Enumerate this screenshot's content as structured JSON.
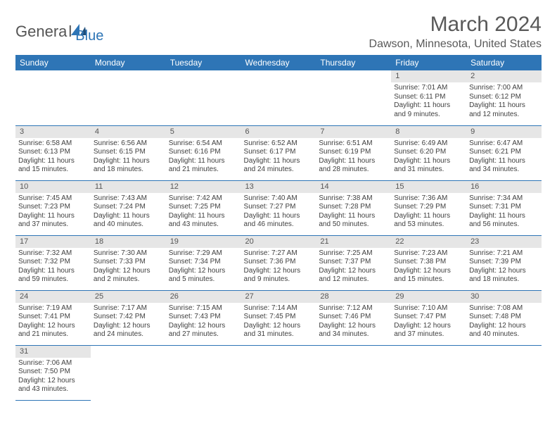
{
  "logo": {
    "genera": "Genera",
    "l": "l",
    "blue": "Blue"
  },
  "title": "March 2024",
  "location": "Dawson, Minnesota, United States",
  "weekdays": [
    "Sunday",
    "Monday",
    "Tuesday",
    "Wednesday",
    "Thursday",
    "Friday",
    "Saturday"
  ],
  "colors": {
    "header_bg": "#2e75b6",
    "header_text": "#ffffff",
    "daynum_bg": "#e6e6e6",
    "rule": "#2e75b6",
    "title_color": "#595959",
    "body_text": "#404040",
    "logo_gray": "#555555",
    "logo_blue": "#2e75b6"
  },
  "weeks": [
    [
      null,
      null,
      null,
      null,
      null,
      {
        "n": "1",
        "sr": "Sunrise: 7:01 AM",
        "ss": "Sunset: 6:11 PM",
        "dl": "Daylight: 11 hours and 9 minutes."
      },
      {
        "n": "2",
        "sr": "Sunrise: 7:00 AM",
        "ss": "Sunset: 6:12 PM",
        "dl": "Daylight: 11 hours and 12 minutes."
      }
    ],
    [
      {
        "n": "3",
        "sr": "Sunrise: 6:58 AM",
        "ss": "Sunset: 6:13 PM",
        "dl": "Daylight: 11 hours and 15 minutes."
      },
      {
        "n": "4",
        "sr": "Sunrise: 6:56 AM",
        "ss": "Sunset: 6:15 PM",
        "dl": "Daylight: 11 hours and 18 minutes."
      },
      {
        "n": "5",
        "sr": "Sunrise: 6:54 AM",
        "ss": "Sunset: 6:16 PM",
        "dl": "Daylight: 11 hours and 21 minutes."
      },
      {
        "n": "6",
        "sr": "Sunrise: 6:52 AM",
        "ss": "Sunset: 6:17 PM",
        "dl": "Daylight: 11 hours and 24 minutes."
      },
      {
        "n": "7",
        "sr": "Sunrise: 6:51 AM",
        "ss": "Sunset: 6:19 PM",
        "dl": "Daylight: 11 hours and 28 minutes."
      },
      {
        "n": "8",
        "sr": "Sunrise: 6:49 AM",
        "ss": "Sunset: 6:20 PM",
        "dl": "Daylight: 11 hours and 31 minutes."
      },
      {
        "n": "9",
        "sr": "Sunrise: 6:47 AM",
        "ss": "Sunset: 6:21 PM",
        "dl": "Daylight: 11 hours and 34 minutes."
      }
    ],
    [
      {
        "n": "10",
        "sr": "Sunrise: 7:45 AM",
        "ss": "Sunset: 7:23 PM",
        "dl": "Daylight: 11 hours and 37 minutes."
      },
      {
        "n": "11",
        "sr": "Sunrise: 7:43 AM",
        "ss": "Sunset: 7:24 PM",
        "dl": "Daylight: 11 hours and 40 minutes."
      },
      {
        "n": "12",
        "sr": "Sunrise: 7:42 AM",
        "ss": "Sunset: 7:25 PM",
        "dl": "Daylight: 11 hours and 43 minutes."
      },
      {
        "n": "13",
        "sr": "Sunrise: 7:40 AM",
        "ss": "Sunset: 7:27 PM",
        "dl": "Daylight: 11 hours and 46 minutes."
      },
      {
        "n": "14",
        "sr": "Sunrise: 7:38 AM",
        "ss": "Sunset: 7:28 PM",
        "dl": "Daylight: 11 hours and 50 minutes."
      },
      {
        "n": "15",
        "sr": "Sunrise: 7:36 AM",
        "ss": "Sunset: 7:29 PM",
        "dl": "Daylight: 11 hours and 53 minutes."
      },
      {
        "n": "16",
        "sr": "Sunrise: 7:34 AM",
        "ss": "Sunset: 7:31 PM",
        "dl": "Daylight: 11 hours and 56 minutes."
      }
    ],
    [
      {
        "n": "17",
        "sr": "Sunrise: 7:32 AM",
        "ss": "Sunset: 7:32 PM",
        "dl": "Daylight: 11 hours and 59 minutes."
      },
      {
        "n": "18",
        "sr": "Sunrise: 7:30 AM",
        "ss": "Sunset: 7:33 PM",
        "dl": "Daylight: 12 hours and 2 minutes."
      },
      {
        "n": "19",
        "sr": "Sunrise: 7:29 AM",
        "ss": "Sunset: 7:34 PM",
        "dl": "Daylight: 12 hours and 5 minutes."
      },
      {
        "n": "20",
        "sr": "Sunrise: 7:27 AM",
        "ss": "Sunset: 7:36 PM",
        "dl": "Daylight: 12 hours and 9 minutes."
      },
      {
        "n": "21",
        "sr": "Sunrise: 7:25 AM",
        "ss": "Sunset: 7:37 PM",
        "dl": "Daylight: 12 hours and 12 minutes."
      },
      {
        "n": "22",
        "sr": "Sunrise: 7:23 AM",
        "ss": "Sunset: 7:38 PM",
        "dl": "Daylight: 12 hours and 15 minutes."
      },
      {
        "n": "23",
        "sr": "Sunrise: 7:21 AM",
        "ss": "Sunset: 7:39 PM",
        "dl": "Daylight: 12 hours and 18 minutes."
      }
    ],
    [
      {
        "n": "24",
        "sr": "Sunrise: 7:19 AM",
        "ss": "Sunset: 7:41 PM",
        "dl": "Daylight: 12 hours and 21 minutes."
      },
      {
        "n": "25",
        "sr": "Sunrise: 7:17 AM",
        "ss": "Sunset: 7:42 PM",
        "dl": "Daylight: 12 hours and 24 minutes."
      },
      {
        "n": "26",
        "sr": "Sunrise: 7:15 AM",
        "ss": "Sunset: 7:43 PM",
        "dl": "Daylight: 12 hours and 27 minutes."
      },
      {
        "n": "27",
        "sr": "Sunrise: 7:14 AM",
        "ss": "Sunset: 7:45 PM",
        "dl": "Daylight: 12 hours and 31 minutes."
      },
      {
        "n": "28",
        "sr": "Sunrise: 7:12 AM",
        "ss": "Sunset: 7:46 PM",
        "dl": "Daylight: 12 hours and 34 minutes."
      },
      {
        "n": "29",
        "sr": "Sunrise: 7:10 AM",
        "ss": "Sunset: 7:47 PM",
        "dl": "Daylight: 12 hours and 37 minutes."
      },
      {
        "n": "30",
        "sr": "Sunrise: 7:08 AM",
        "ss": "Sunset: 7:48 PM",
        "dl": "Daylight: 12 hours and 40 minutes."
      }
    ],
    [
      {
        "n": "31",
        "sr": "Sunrise: 7:06 AM",
        "ss": "Sunset: 7:50 PM",
        "dl": "Daylight: 12 hours and 43 minutes."
      },
      null,
      null,
      null,
      null,
      null,
      null
    ]
  ]
}
